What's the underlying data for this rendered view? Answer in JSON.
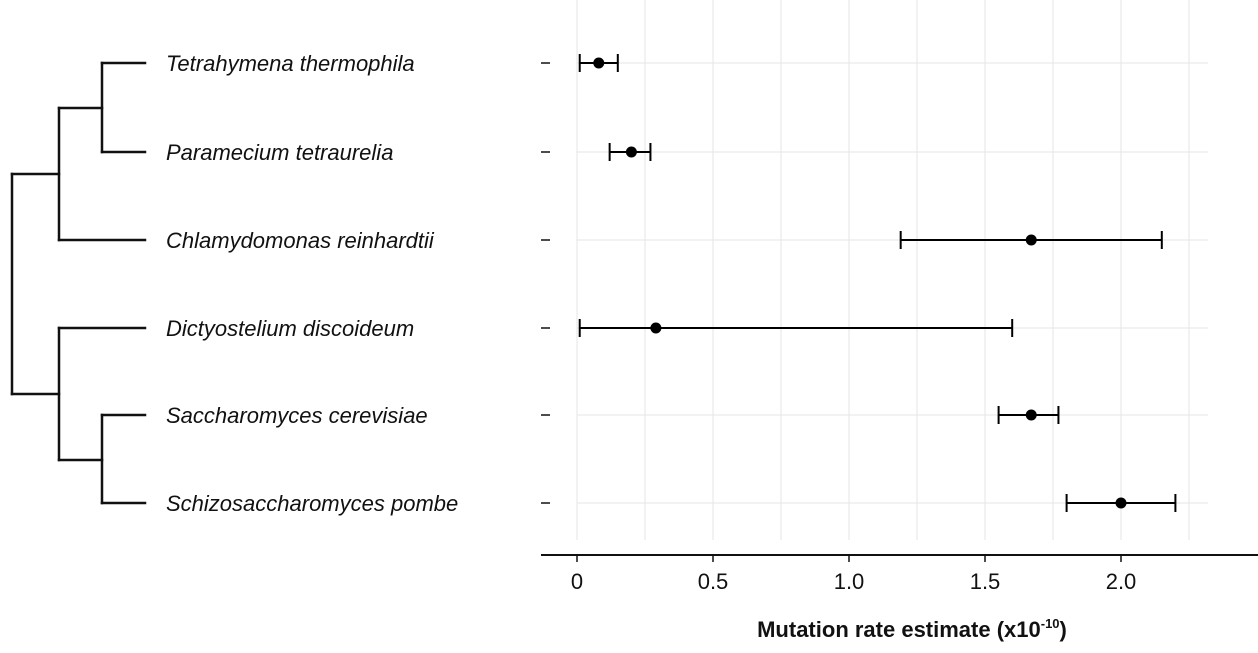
{
  "chart_data": {
    "type": "scatter",
    "subtype": "forest-plot-with-error-bars",
    "categories": [
      "Tetrahymena thermophila",
      "Paramecium tetraurelia",
      "Chlamydomonas reinhardtii",
      "Dictyostelium discoideum",
      "Saccharomyces cerevisiae",
      "Schizosaccharomyces pombe"
    ],
    "series": [
      {
        "values": [
          0.08,
          0.2,
          1.67,
          0.29,
          1.67,
          2.0
        ],
        "lower": [
          0.01,
          0.12,
          1.19,
          0.01,
          1.55,
          1.8
        ],
        "upper": [
          0.15,
          0.27,
          2.15,
          1.6,
          1.77,
          2.2
        ]
      }
    ],
    "xlabel": {
      "main": "Mutation rate estimate (x10",
      "superscript": "-10",
      "close": ")"
    },
    "xticks": [
      "0",
      "0.5",
      "1.0",
      "1.5",
      "2.0"
    ],
    "xtick_values": [
      0,
      0.5,
      1.0,
      1.5,
      2.0
    ],
    "xlim": [
      -0.12,
      2.45
    ],
    "grid": true,
    "point_color": "#000000",
    "grid_color": "#e6e6e6",
    "tree": {
      "description": "cladogram",
      "topology": "(((Tetrahymena thermophila, Paramecium tetraurelia), Chlamydomonas reinhardtii), (Dictyostelium discoideum, (Saccharomyces cerevisiae, Schizosaccharomyces pombe)))"
    }
  }
}
